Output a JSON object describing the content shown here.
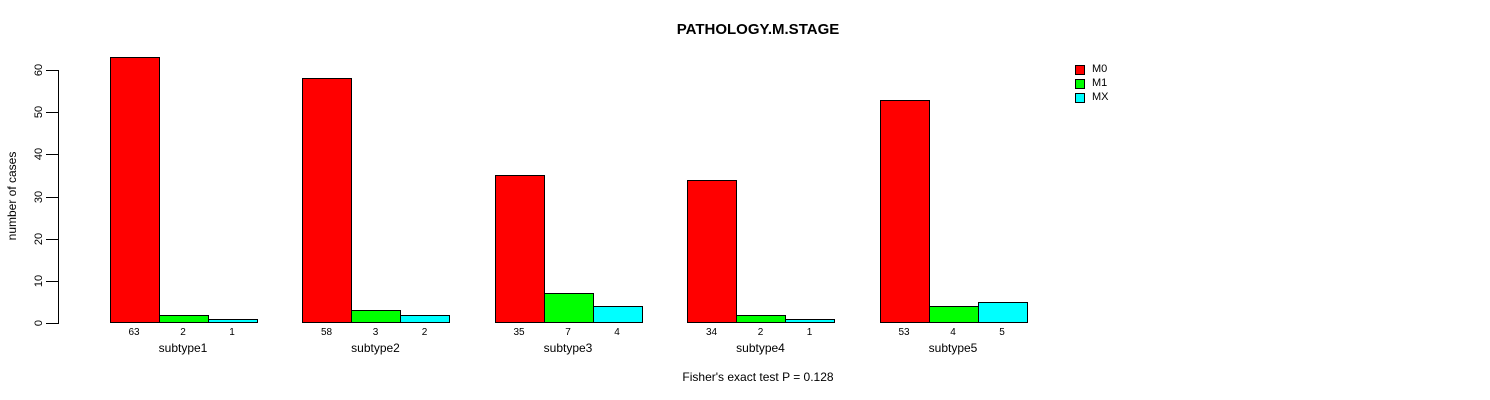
{
  "chart_data": {
    "type": "bar",
    "title": "PATHOLOGY.M.STAGE",
    "ylabel": "number of cases",
    "xlabel": "",
    "annotation": "Fisher's exact test P = 0.128",
    "categories": [
      "subtype1",
      "subtype2",
      "subtype3",
      "subtype4",
      "subtype5"
    ],
    "series": [
      {
        "name": "M0",
        "color": "#ff0000",
        "values": [
          63,
          58,
          35,
          34,
          53
        ]
      },
      {
        "name": "M1",
        "color": "#00ff00",
        "values": [
          2,
          3,
          7,
          2,
          4
        ]
      },
      {
        "name": "MX",
        "color": "#00ffff",
        "values": [
          1,
          2,
          4,
          1,
          5
        ]
      }
    ],
    "bar_value_labels": [
      [
        "63",
        "2",
        "1"
      ],
      [
        "58",
        "3",
        "2"
      ],
      [
        "35",
        "7",
        "4"
      ],
      [
        "34",
        "2",
        "1"
      ],
      [
        "53",
        "4",
        "5"
      ]
    ],
    "yticks": [
      "0",
      "10",
      "20",
      "30",
      "40",
      "50",
      "60"
    ],
    "ylim": [
      0,
      60
    ],
    "grid": false,
    "legend_position": "top-right",
    "bar_outline_color": "#000000",
    "background_color": "#ffffff"
  }
}
